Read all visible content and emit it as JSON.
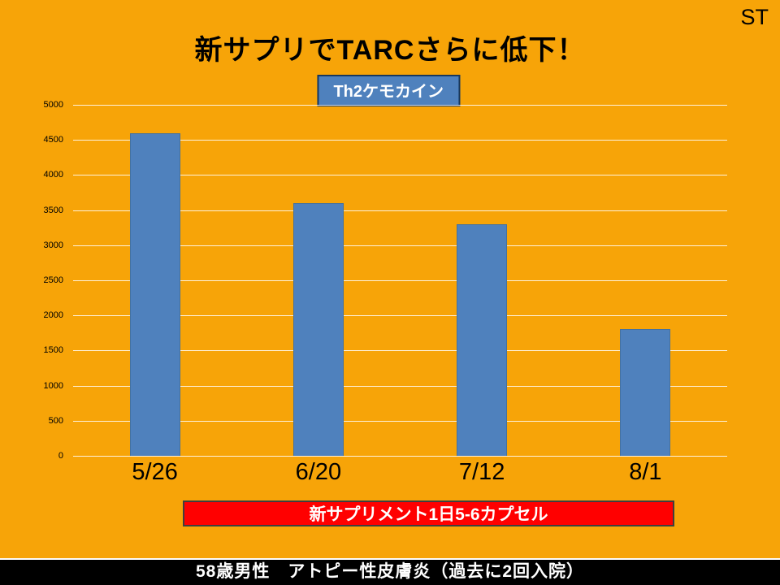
{
  "slide": {
    "corner_mark": "ST",
    "title": "新サプリでTARCさらに低下！",
    "banner": "新サプリメント1日5-6カプセル",
    "footer": "58歳男性　アトピー性皮膚炎（過去に2回入院）"
  },
  "chart_data": {
    "type": "bar",
    "title": "",
    "legend": "Th2ケモカイン",
    "legend_position": "top-center",
    "categories": [
      "5/26",
      "6/20",
      "7/12",
      "8/1"
    ],
    "values": [
      4600,
      3600,
      3300,
      1800
    ],
    "xlabel": "",
    "ylabel": "",
    "ylim": [
      0,
      5000
    ],
    "ytick_step": 500,
    "grid": true,
    "bar_color": "#4F81BD",
    "background_color": "#F7A408"
  },
  "colors": {
    "background": "#F7A408",
    "bar": "#4F81BD",
    "legend_fill": "#4F81BD",
    "legend_border": "#17375D",
    "banner_fill": "#FF0000",
    "banner_border": "#3F3F3F",
    "footer_background": "#000000",
    "footer_text": "#FFFFFF",
    "gridline": "#FFFFFF"
  }
}
